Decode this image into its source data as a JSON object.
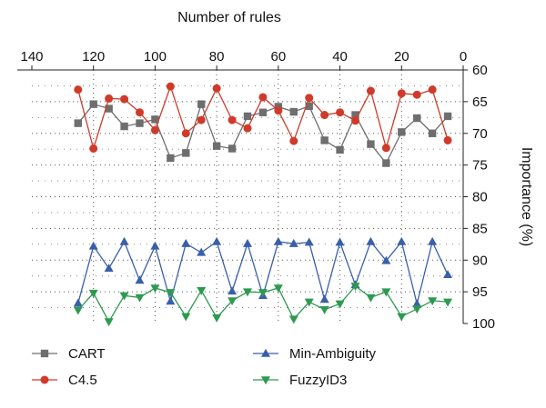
{
  "chart_data": {
    "type": "line",
    "xlabel": "Number of rules",
    "ylabel": "Importance (%)",
    "x_axis_position": "top",
    "y_axis_position": "right",
    "x_reversed": true,
    "y_reversed": true,
    "xlim": [
      140,
      0
    ],
    "ylim": [
      60,
      100
    ],
    "xticks": [
      "140",
      "120",
      "100",
      "80",
      "60",
      "40",
      "20",
      "0"
    ],
    "yticks": [
      "60",
      "65",
      "70",
      "75",
      "80",
      "85",
      "90",
      "95",
      "100"
    ],
    "grid": "dotted",
    "legend_position": "bottom",
    "series": [
      {
        "name": "CART",
        "color": "#6e6e6e",
        "marker": "square",
        "x": [
          125,
          120,
          115,
          110,
          105,
          100,
          95,
          90,
          85,
          80,
          75,
          70,
          65,
          60,
          55,
          50,
          45,
          40,
          35,
          30,
          25,
          20,
          15,
          10,
          5
        ],
        "y": [
          68.4,
          65.4,
          66.1,
          68.9,
          68.4,
          67.8,
          73.9,
          73.1,
          65.4,
          72.0,
          72.4,
          67.3,
          66.7,
          65.8,
          66.6,
          65.7,
          71.1,
          72.6,
          67.1,
          71.7,
          74.7,
          69.8,
          67.6,
          70.0,
          67.3
        ]
      },
      {
        "name": "C4.5",
        "color": "#d03a2a",
        "marker": "circle",
        "x": [
          125,
          120,
          115,
          110,
          105,
          100,
          95,
          90,
          85,
          80,
          75,
          70,
          65,
          60,
          55,
          50,
          45,
          40,
          35,
          30,
          25,
          20,
          15,
          10,
          5
        ],
        "y": [
          63.1,
          72.4,
          64.5,
          64.6,
          66.7,
          69.5,
          62.6,
          70.0,
          67.9,
          62.9,
          67.9,
          69.2,
          64.3,
          66.4,
          71.2,
          64.4,
          67.1,
          66.7,
          68.0,
          63.3,
          72.3,
          63.7,
          63.9,
          63.1,
          71.1
        ]
      },
      {
        "name": "Min-Ambiguity",
        "color": "#3a5faa",
        "marker": "triangle-up",
        "x": [
          125,
          120,
          115,
          110,
          105,
          100,
          95,
          90,
          85,
          80,
          75,
          70,
          65,
          60,
          55,
          50,
          45,
          40,
          35,
          30,
          25,
          20,
          15,
          10,
          5
        ],
        "y": [
          96.8,
          87.8,
          91.3,
          87.1,
          93.2,
          87.8,
          96.5,
          87.4,
          88.8,
          87.1,
          94.9,
          87.4,
          95.6,
          87.1,
          87.4,
          87.2,
          96.2,
          87.2,
          93.9,
          87.1,
          90.1,
          87.1,
          96.9,
          87.1,
          92.3
        ]
      },
      {
        "name": "FuzzyID3",
        "color": "#2e9a4f",
        "marker": "triangle-down",
        "x": [
          125,
          120,
          115,
          110,
          105,
          100,
          95,
          90,
          85,
          80,
          75,
          70,
          65,
          60,
          55,
          50,
          45,
          40,
          35,
          30,
          25,
          20,
          15,
          10,
          5
        ],
        "y": [
          97.9,
          95.2,
          99.7,
          95.6,
          95.9,
          94.4,
          95.1,
          98.9,
          94.8,
          99.1,
          96.4,
          95.0,
          95.1,
          94.4,
          99.3,
          96.6,
          97.8,
          96.9,
          94.1,
          95.9,
          95.0,
          98.9,
          97.7,
          96.4,
          96.6
        ]
      }
    ]
  }
}
